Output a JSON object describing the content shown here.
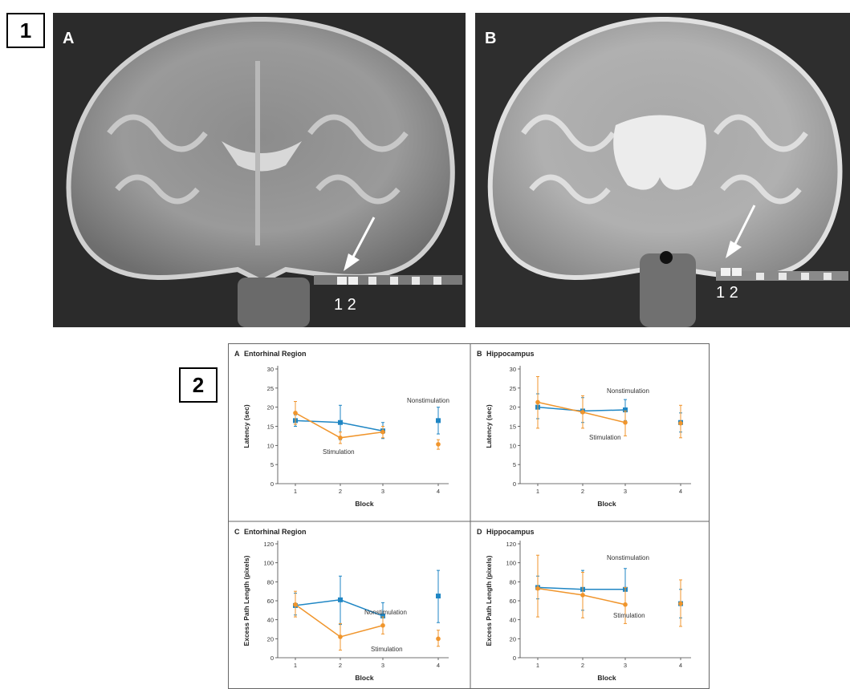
{
  "panel_labels": {
    "top": "1",
    "bottom": "2"
  },
  "mri": {
    "a": {
      "letter": "A",
      "electrodes": "1 2"
    },
    "b": {
      "letter": "B",
      "electrodes": "1 2"
    }
  },
  "colors": {
    "nonstimulation": "#1f86c4",
    "stimulation": "#f0952c",
    "frame": "#666666"
  },
  "chart_data": [
    {
      "type": "line",
      "panel": "A",
      "title": "Entorhinal Region",
      "xlabel": "Block",
      "ylabel": "Latency (sec)",
      "categories": [
        "1",
        "2",
        "3",
        "4"
      ],
      "ylim": [
        0,
        30
      ],
      "yticks": [
        "0",
        "5",
        "10",
        "15",
        "20",
        "25",
        "30"
      ],
      "series": [
        {
          "name": "Nonstimulation",
          "values": [
            16.5,
            16.0,
            13.8,
            16.5
          ],
          "err": [
            [
              15.0,
              18.0
            ],
            [
              11.5,
              20.5
            ],
            [
              11.8,
              16.0
            ],
            [
              13.0,
              20.0
            ]
          ]
        },
        {
          "name": "Stimulation",
          "values": [
            18.5,
            12.0,
            13.5,
            10.3
          ],
          "err": [
            [
              15.5,
              21.5
            ],
            [
              10.5,
              13.5
            ],
            [
              12.0,
              15.0
            ],
            [
              9.0,
              11.5
            ]
          ]
        }
      ]
    },
    {
      "type": "line",
      "panel": "B",
      "title": "Hippocampus",
      "xlabel": "Block",
      "ylabel": "Latency (sec)",
      "categories": [
        "1",
        "2",
        "3",
        "4"
      ],
      "ylim": [
        0,
        30
      ],
      "yticks": [
        "0",
        "5",
        "10",
        "15",
        "20",
        "25",
        "30"
      ],
      "series": [
        {
          "name": "Nonstimulation",
          "values": [
            20.0,
            19.0,
            19.3,
            16.0
          ],
          "err": [
            [
              17.0,
              23.5
            ],
            [
              16.0,
              22.5
            ],
            [
              16.5,
              22.0
            ],
            [
              13.5,
              18.5
            ]
          ]
        },
        {
          "name": "Stimulation",
          "values": [
            21.3,
            18.7,
            16.0,
            15.8
          ],
          "err": [
            [
              14.5,
              28.0
            ],
            [
              14.5,
              23.0
            ],
            [
              12.5,
              19.0
            ],
            [
              12.0,
              20.5
            ]
          ]
        }
      ]
    },
    {
      "type": "line",
      "panel": "C",
      "title": "Entorhinal Region",
      "xlabel": "Block",
      "ylabel": "Excess Path Length (pixels)",
      "categories": [
        "1",
        "2",
        "3",
        "4"
      ],
      "ylim": [
        0,
        120
      ],
      "yticks": [
        "0",
        "20",
        "40",
        "60",
        "80",
        "100",
        "120"
      ],
      "series": [
        {
          "name": "Nonstimulation",
          "values": [
            55,
            61,
            44,
            65
          ],
          "err": [
            [
              45,
              68
            ],
            [
              35,
              86
            ],
            [
              33,
              58
            ],
            [
              37,
              92
            ]
          ]
        },
        {
          "name": "Stimulation",
          "values": [
            56,
            22,
            34,
            20
          ],
          "err": [
            [
              43,
              70
            ],
            [
              8,
              36
            ],
            [
              25,
              43
            ],
            [
              12,
              29
            ]
          ]
        }
      ]
    },
    {
      "type": "line",
      "panel": "D",
      "title": "Hippocampus",
      "xlabel": "Block",
      "ylabel": "Excess Path Length (pixels)",
      "categories": [
        "1",
        "2",
        "3",
        "4"
      ],
      "ylim": [
        0,
        120
      ],
      "yticks": [
        "0",
        "20",
        "40",
        "60",
        "80",
        "100",
        "120"
      ],
      "series": [
        {
          "name": "Nonstimulation",
          "values": [
            74,
            72,
            72,
            57
          ],
          "err": [
            [
              62,
              86
            ],
            [
              50,
              92
            ],
            [
              55,
              94
            ],
            [
              42,
              72
            ]
          ]
        },
        {
          "name": "Stimulation",
          "values": [
            73,
            66,
            56,
            57
          ],
          "err": [
            [
              43,
              108
            ],
            [
              42,
              90
            ],
            [
              36,
              74
            ],
            [
              33,
              82
            ]
          ]
        }
      ]
    }
  ]
}
